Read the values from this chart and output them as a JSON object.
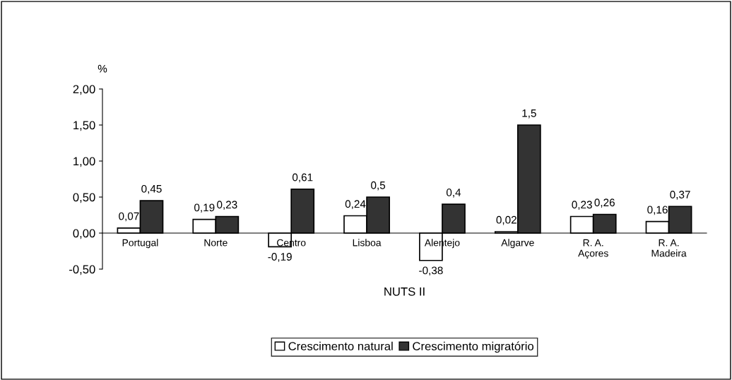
{
  "chart_data": {
    "type": "bar",
    "xlabel": "NUTS II",
    "ylabel": "%",
    "categories": [
      "Portugal",
      "Norte",
      "Centro",
      "Lisboa",
      "Alentejo",
      "Algarve",
      "R. A.\nAçores",
      "R. A.\nMadeira"
    ],
    "series": [
      {
        "name": "Crescimento natural",
        "color": "#ffffff",
        "values": [
          0.07,
          0.19,
          -0.19,
          0.24,
          -0.38,
          0.02,
          0.23,
          0.16
        ],
        "value_labels": [
          "0,07",
          "0,19",
          "-0,19",
          "0,24",
          "-0,38",
          "0,02",
          "0,23",
          "0,16"
        ]
      },
      {
        "name": "Crescimento migratório",
        "color": "#333333",
        "values": [
          0.45,
          0.23,
          0.61,
          0.5,
          0.4,
          1.5,
          0.26,
          0.37
        ],
        "value_labels": [
          "0,45",
          "0,23",
          "0,61",
          "0,5",
          "0,4",
          "1,5",
          "0,26",
          "0,37"
        ]
      }
    ],
    "ylim": [
      -0.5,
      2.0
    ],
    "yticks": [
      {
        "value": -0.5,
        "label": "-0,50"
      },
      {
        "value": 0,
        "label": "0,00"
      },
      {
        "value": 0.5,
        "label": "0,50"
      },
      {
        "value": 1.0,
        "label": "1,00"
      },
      {
        "value": 1.5,
        "label": "1,50"
      },
      {
        "value": 2.0,
        "label": "2,00"
      }
    ],
    "grid": false,
    "legend": "bottom"
  }
}
